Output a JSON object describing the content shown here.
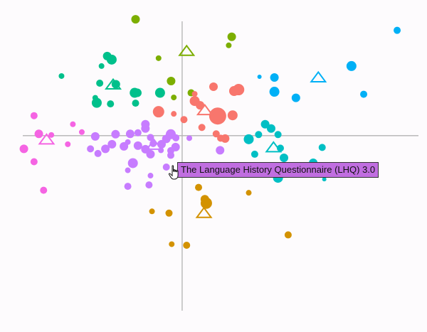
{
  "chart_data": {
    "type": "scatter",
    "title": "",
    "xlabel": "",
    "ylabel": "",
    "xlim": [
      -6.1,
      8.2
    ],
    "ylim": [
      -5.5,
      3.8
    ],
    "grid": false,
    "legend": "none",
    "axes_at_origin": true,
    "groups": [
      {
        "color": "#7cae00",
        "centroid": [
          0.15,
          2.37
        ],
        "points": [
          [
            -1.56,
            3.26,
            6
          ],
          [
            1.66,
            2.77,
            6
          ],
          [
            1.56,
            2.53,
            4
          ],
          [
            -0.79,
            2.17,
            4
          ],
          [
            -0.37,
            1.53,
            6
          ],
          [
            0.3,
            1.2,
            5
          ],
          [
            -0.28,
            1.07,
            4
          ]
        ]
      },
      {
        "color": "#00c08b",
        "centroid": [
          -2.31,
          1.43
        ],
        "points": [
          [
            -2.51,
            2.23,
            6
          ],
          [
            -2.36,
            2.13,
            7
          ],
          [
            -4.04,
            1.67,
            4
          ],
          [
            -2.7,
            1.95,
            4
          ],
          [
            -2.76,
            1.47,
            5
          ],
          [
            -2.22,
            1.44,
            6
          ],
          [
            -1.59,
            1.2,
            7
          ],
          [
            -1.5,
            1.2,
            6
          ],
          [
            -0.74,
            1.2,
            7
          ],
          [
            -2.91,
            1.06,
            4
          ],
          [
            -2.86,
            0.92,
            7
          ],
          [
            -2.4,
            0.89,
            5
          ],
          [
            -1.56,
            0.91,
            5
          ]
        ]
      },
      {
        "color": "#00b0f6",
        "centroid": [
          4.56,
          1.63
        ],
        "points": [
          [
            7.2,
            2.95,
            5
          ],
          [
            5.67,
            1.95,
            7
          ],
          [
            3.09,
            1.63,
            6
          ],
          [
            2.59,
            1.65,
            3
          ],
          [
            3.09,
            1.23,
            7
          ],
          [
            3.81,
            1.06,
            6
          ],
          [
            6.08,
            1.16,
            5
          ]
        ]
      },
      {
        "color": "#f8766d",
        "centroid": [
          0.76,
          0.71
        ],
        "points": [
          [
            1.05,
            1.37,
            6
          ],
          [
            1.89,
            1.29,
            8
          ],
          [
            1.74,
            1.25,
            7
          ],
          [
            0.42,
            1.17,
            4
          ],
          [
            0.42,
            0.97,
            7
          ],
          [
            0.6,
            0.85,
            6
          ],
          [
            -0.79,
            0.67,
            8
          ],
          [
            -0.28,
            0.61,
            4
          ],
          [
            1.19,
            0.55,
            12
          ],
          [
            1.69,
            0.57,
            7
          ],
          [
            0.06,
            0.45,
            5
          ],
          [
            0.66,
            0.23,
            5
          ],
          [
            1.14,
            0.05,
            5
          ],
          [
            1.44,
            -0.08,
            6
          ],
          [
            1.29,
            -0.07,
            5
          ]
        ]
      },
      {
        "color": "#00bfc4",
        "centroid": [
          3.06,
          -0.33
        ],
        "points": [
          [
            2.78,
            0.32,
            6
          ],
          [
            2.98,
            0.2,
            6
          ],
          [
            2.56,
            0.03,
            5
          ],
          [
            3.21,
            0.03,
            5
          ],
          [
            2.23,
            -0.1,
            7
          ],
          [
            3.29,
            -0.35,
            5
          ],
          [
            4.69,
            -0.33,
            5
          ],
          [
            3.41,
            -0.62,
            6
          ],
          [
            2.43,
            -0.52,
            5
          ],
          [
            4.39,
            -0.76,
            6
          ],
          [
            2.48,
            -1.04,
            5
          ],
          [
            3.21,
            -1.18,
            7
          ],
          [
            4.76,
            -1.22,
            3
          ]
        ]
      },
      {
        "color": "#c77cff",
        "centroid": [
          -0.94,
          -0.26
        ],
        "points": [
          [
            -1.23,
            0.32,
            6
          ],
          [
            -1.23,
            0.2,
            6
          ],
          [
            -1.48,
            0.08,
            5
          ],
          [
            -2.23,
            0.04,
            6
          ],
          [
            -1.74,
            0.05,
            6
          ],
          [
            -0.38,
            0.04,
            7
          ],
          [
            -2.91,
            -0.02,
            6
          ],
          [
            -1.06,
            -0.05,
            5
          ],
          [
            -0.53,
            -0.09,
            6
          ],
          [
            -0.21,
            -0.06,
            5
          ],
          [
            0.24,
            -0.07,
            4
          ],
          [
            -1.82,
            -0.18,
            4
          ],
          [
            -2.35,
            -0.24,
            6
          ],
          [
            -1.95,
            -0.3,
            6
          ],
          [
            -1.48,
            -0.28,
            6
          ],
          [
            -0.97,
            -0.22,
            5
          ],
          [
            -0.69,
            -0.24,
            6
          ],
          [
            -0.22,
            -0.32,
            6
          ],
          [
            -3.07,
            -0.37,
            5
          ],
          [
            -2.57,
            -0.37,
            6
          ],
          [
            -1.23,
            -0.38,
            6
          ],
          [
            -0.71,
            -0.41,
            4
          ],
          [
            -0.38,
            -0.42,
            5
          ],
          [
            -2.82,
            -0.5,
            5
          ],
          [
            -1.06,
            -0.52,
            6
          ],
          [
            -0.38,
            -0.55,
            5
          ],
          [
            1.27,
            -0.41,
            6
          ],
          [
            -1.65,
            -0.77,
            7
          ],
          [
            -0.53,
            -0.88,
            5
          ],
          [
            -1.82,
            -0.97,
            4
          ],
          [
            -1.06,
            -1.12,
            4
          ],
          [
            -1.82,
            -1.42,
            5
          ],
          [
            -1.11,
            -1.38,
            5
          ]
        ]
      },
      {
        "color": "#f564e3",
        "centroid": [
          -4.54,
          -0.11
        ],
        "points": [
          [
            -4.96,
            0.56,
            5
          ],
          [
            -3.66,
            0.32,
            4
          ],
          [
            -3.36,
            0.1,
            4
          ],
          [
            -4.8,
            0.05,
            6
          ],
          [
            -4.38,
            0.02,
            4
          ],
          [
            -3.83,
            -0.24,
            4
          ],
          [
            -5.3,
            -0.37,
            6
          ],
          [
            -4.96,
            -0.73,
            5
          ],
          [
            -4.64,
            -1.53,
            5
          ]
        ]
      },
      {
        "color": "#d39200",
        "centroid": [
          0.73,
          -2.17
        ],
        "points": [
          [
            0.55,
            -1.45,
            5
          ],
          [
            0.76,
            -1.78,
            6
          ],
          [
            2.23,
            -1.6,
            4
          ],
          [
            0.81,
            -1.89,
            8
          ],
          [
            -1.01,
            -2.12,
            4
          ],
          [
            -0.44,
            -2.17,
            5
          ],
          [
            3.55,
            -2.78,
            5
          ],
          [
            -0.35,
            -3.04,
            4
          ],
          [
            0.15,
            -3.07,
            5
          ]
        ]
      }
    ],
    "tooltip": "The Language History Questionnaire (LHQ) 3.0"
  }
}
